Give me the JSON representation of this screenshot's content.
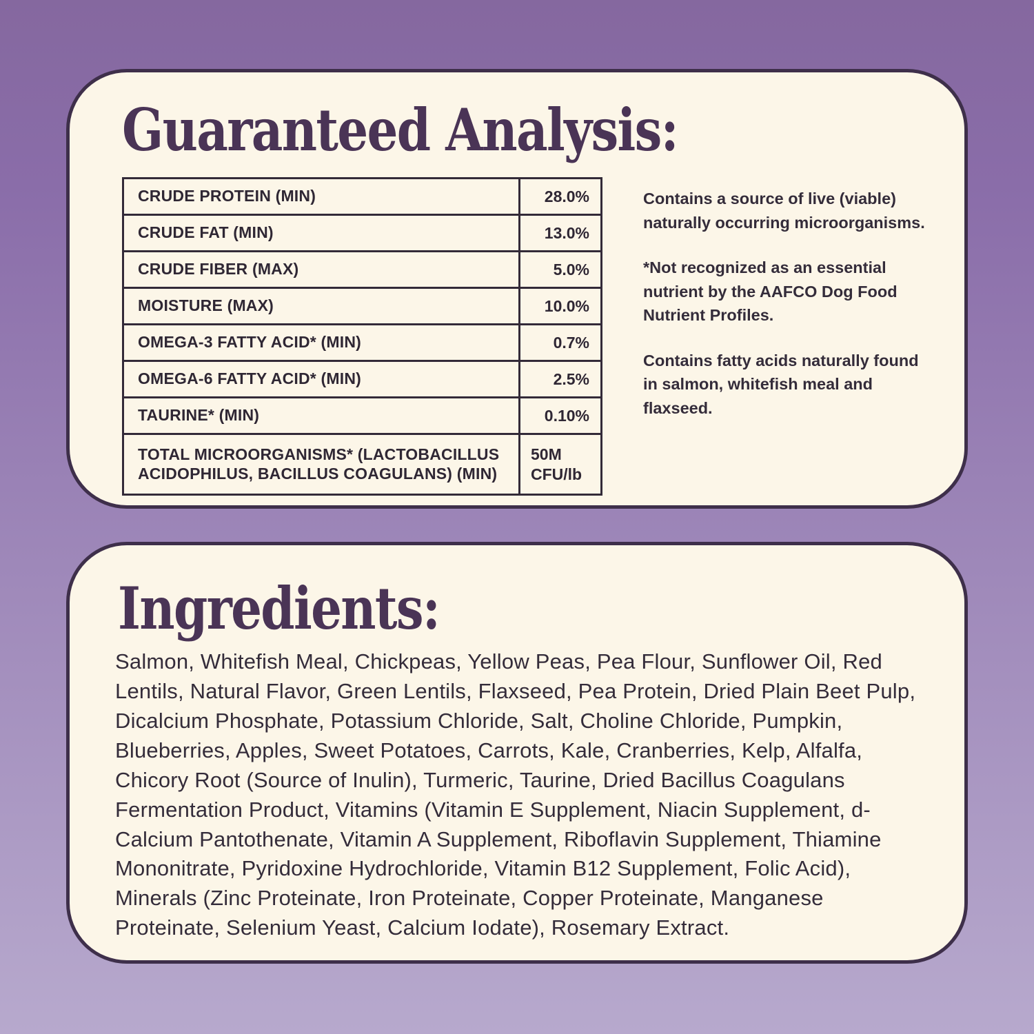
{
  "colors": {
    "background_gradient_top": "#85689F",
    "background_gradient_bottom": "#B7A9CD",
    "card_background": "#FCF6E8",
    "card_border": "#3E2F4A",
    "title_ink": "#4A3456",
    "body_ink": "#2F2734"
  },
  "guaranteed_analysis": {
    "title": "Guaranteed Analysis:",
    "table": {
      "rows": [
        {
          "label": "CRUDE PROTEIN (MIN)",
          "value": "28.0%"
        },
        {
          "label": "CRUDE FAT (MIN)",
          "value": "13.0%"
        },
        {
          "label": "CRUDE FIBER (MAX)",
          "value": "5.0%"
        },
        {
          "label": "MOISTURE (MAX)",
          "value": "10.0%"
        },
        {
          "label": "OMEGA-3 FATTY ACID* (MIN)",
          "value": "0.7%"
        },
        {
          "label": "OMEGA-6 FATTY ACID* (MIN)",
          "value": "2.5%"
        },
        {
          "label": "TAURINE* (MIN)",
          "value": "0.10%"
        },
        {
          "label": "TOTAL MICROORGANISMS* (LACTOBACILLUS ACIDOPHILUS, BACILLUS COAGULANS) (MIN)",
          "value": "50M CFU/lb"
        }
      ]
    },
    "notes": [
      "Contains a source of live (viable) naturally occurring microorganisms.",
      "*Not recognized as an essential nutrient by the AAFCO Dog Food Nutrient Profiles.",
      "Contains fatty acids naturally found in salmon, whitefish meal and flaxseed."
    ]
  },
  "ingredients": {
    "title": "Ingredients:",
    "text": "Salmon, Whitefish Meal, Chickpeas, Yellow Peas, Pea Flour, Sunflower Oil, Red Lentils, Natural Flavor, Green Lentils, Flaxseed, Pea Protein, Dried Plain Beet Pulp, Dicalcium Phosphate, Potassium Chloride, Salt, Choline Chloride, Pumpkin, Blueberries, Apples, Sweet Potatoes, Carrots, Kale, Cranberries, Kelp, Alfalfa, Chicory Root (Source of Inulin), Turmeric, Taurine, Dried Bacillus Coagulans Fermentation Product, Vitamins (Vitamin E Supplement, Niacin Supplement, d-Calcium Pantothenate, Vitamin A Supplement, Riboflavin Supplement, Thiamine Mononitrate, Pyridoxine Hydrochloride, Vitamin B12 Supplement, Folic Acid), Minerals (Zinc Proteinate, Iron Proteinate, Copper Proteinate, Manganese Proteinate, Selenium Yeast, Calcium Iodate), Rosemary Extract."
  }
}
